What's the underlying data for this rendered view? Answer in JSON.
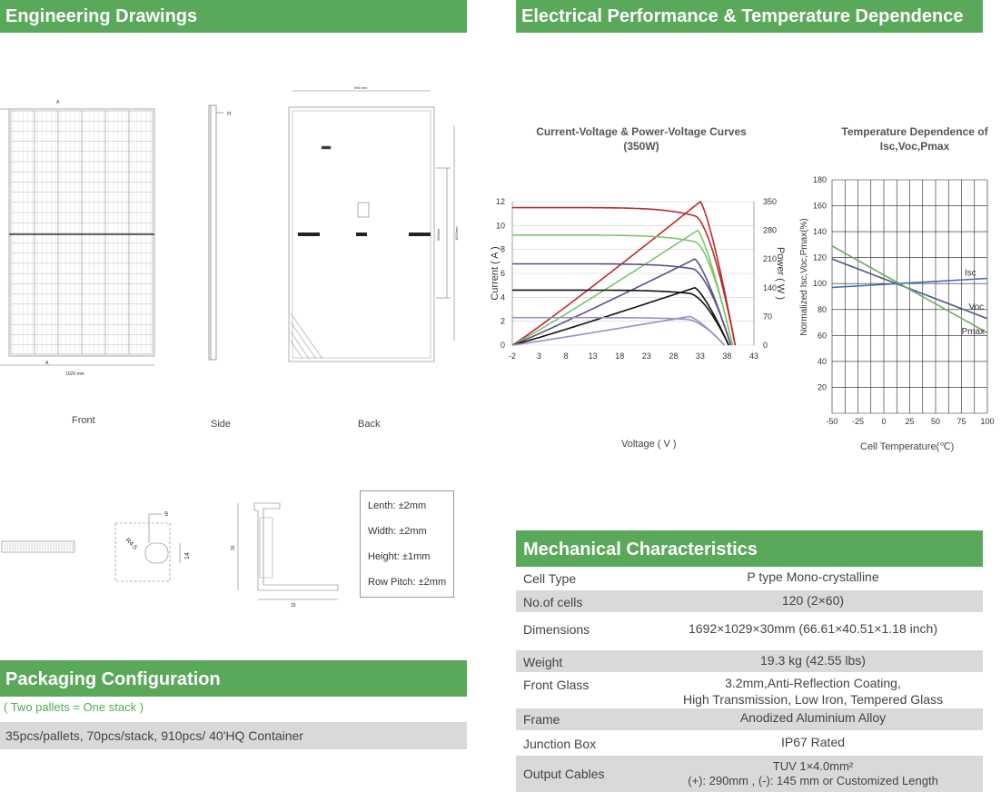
{
  "sections": {
    "engineering": "Engineering Drawings",
    "electrical": "Electrical Performance & Temperature Dependence",
    "mechanical": "Mechanical Characteristics",
    "packaging": "Packaging Configuration"
  },
  "drawings": {
    "front_caption": "Front",
    "side_caption": "Side",
    "back_caption": "Back",
    "dims": {
      "width": "1029 mm",
      "height_back": "1692mm",
      "h_label": "H",
      "a_label": "A",
      "top_back": "996 mm",
      "mount_hole": "990mm"
    },
    "detail": {
      "r": "R4.5",
      "w": "9",
      "h": "14",
      "frame_h": "30",
      "frame_w": "33"
    },
    "tolerances": [
      "Lenth: ±2mm",
      "Width: ±2mm",
      "Height: ±1mm",
      "Row Pitch: ±2mm"
    ]
  },
  "chart_data": [
    {
      "type": "line",
      "title": "Current-Voltage & Power-Voltage Curves (350W)",
      "xlabel": "Voltage ( V )",
      "ylabel": "Current ( A )",
      "y2label": "Power ( W )",
      "xlim": [
        -2,
        43
      ],
      "ylim": [
        0,
        12
      ],
      "y2lim": [
        0,
        350
      ],
      "xticks": [
        "-2",
        "3",
        "8",
        "13",
        "18",
        "23",
        "28",
        "33",
        "38",
        "43"
      ],
      "yticks": [
        "0",
        "2",
        "4",
        "6",
        "8",
        "10",
        "12"
      ],
      "y2ticks": [
        "0",
        "70",
        "140",
        "210",
        "280",
        "350"
      ],
      "series": [
        {
          "color": "#c0282e",
          "iv": {
            "isc": 11.5,
            "vm": 32,
            "voc": 39.5
          },
          "pv": {
            "pmax": 350,
            "vm": 33
          }
        },
        {
          "color": "#7dc56a",
          "iv": {
            "isc": 9.2,
            "vm": 32,
            "voc": 39.0
          },
          "pv": {
            "pmax": 280,
            "vm": 32.5
          }
        },
        {
          "color": "#5b4f86",
          "iv": {
            "isc": 6.8,
            "vm": 31.5,
            "voc": 38.7
          },
          "pv": {
            "pmax": 210,
            "vm": 32
          }
        },
        {
          "color": "#111111",
          "iv": {
            "isc": 4.6,
            "vm": 31,
            "voc": 38.3
          },
          "pv": {
            "pmax": 140,
            "vm": 32
          }
        },
        {
          "color": "#9a8fc0",
          "iv": {
            "isc": 2.3,
            "vm": 30.5,
            "voc": 37.5
          },
          "pv": {
            "pmax": 70,
            "vm": 31
          }
        }
      ]
    },
    {
      "type": "line",
      "title": "Temperature Dependence of Isc,Voc,Pmax",
      "xlabel": "Cell Temperature(℃)",
      "ylabel": "Normalized Isc,Voc,Pmax(%)",
      "xlim": [
        -50,
        100
      ],
      "ylim": [
        0,
        180
      ],
      "xticks": [
        "-50",
        "-25",
        "0",
        "25",
        "50",
        "75",
        "100"
      ],
      "yticks": [
        "20",
        "40",
        "60",
        "80",
        "100",
        "120",
        "140",
        "160",
        "180"
      ],
      "series": [
        {
          "name": "Isc",
          "color": "#3a6fb0",
          "x": [
            -50,
            100
          ],
          "y": [
            97,
            104
          ]
        },
        {
          "name": "Voc",
          "color": "#4a5a8a",
          "x": [
            -50,
            100
          ],
          "y": [
            119,
            73
          ]
        },
        {
          "name": "Pmax",
          "color": "#6aab5a",
          "x": [
            -50,
            100
          ],
          "y": [
            129,
            62
          ]
        }
      ]
    }
  ],
  "mechanical": [
    {
      "k": "Cell Type",
      "v": "P type Mono-crystalline"
    },
    {
      "k": "No.of cells",
      "v": "120 (2×60)"
    },
    {
      "k": "Dimensions",
      "v": "1692×1029×30mm (66.61×40.51×1.18 inch)"
    },
    {
      "k": "Weight",
      "v": "19.3 kg (42.55 lbs)"
    },
    {
      "k": "Front Glass",
      "v": "3.2mm,Anti-Reflection Coating,",
      "v2": "High Transmission, Low Iron, Tempered Glass"
    },
    {
      "k": "Frame",
      "v": "Anodized Aluminium Alloy"
    },
    {
      "k": "Junction Box",
      "v": "IP67 Rated"
    },
    {
      "k": "Output Cables",
      "v": "TUV  1×4.0mm²",
      "v2": "(+): 290mm , (-): 145 mm or Customized Length"
    }
  ],
  "packaging": {
    "note": "( Two pallets = One stack )",
    "content": "35pcs/pallets, 70pcs/stack, 910pcs/ 40'HQ Container"
  }
}
